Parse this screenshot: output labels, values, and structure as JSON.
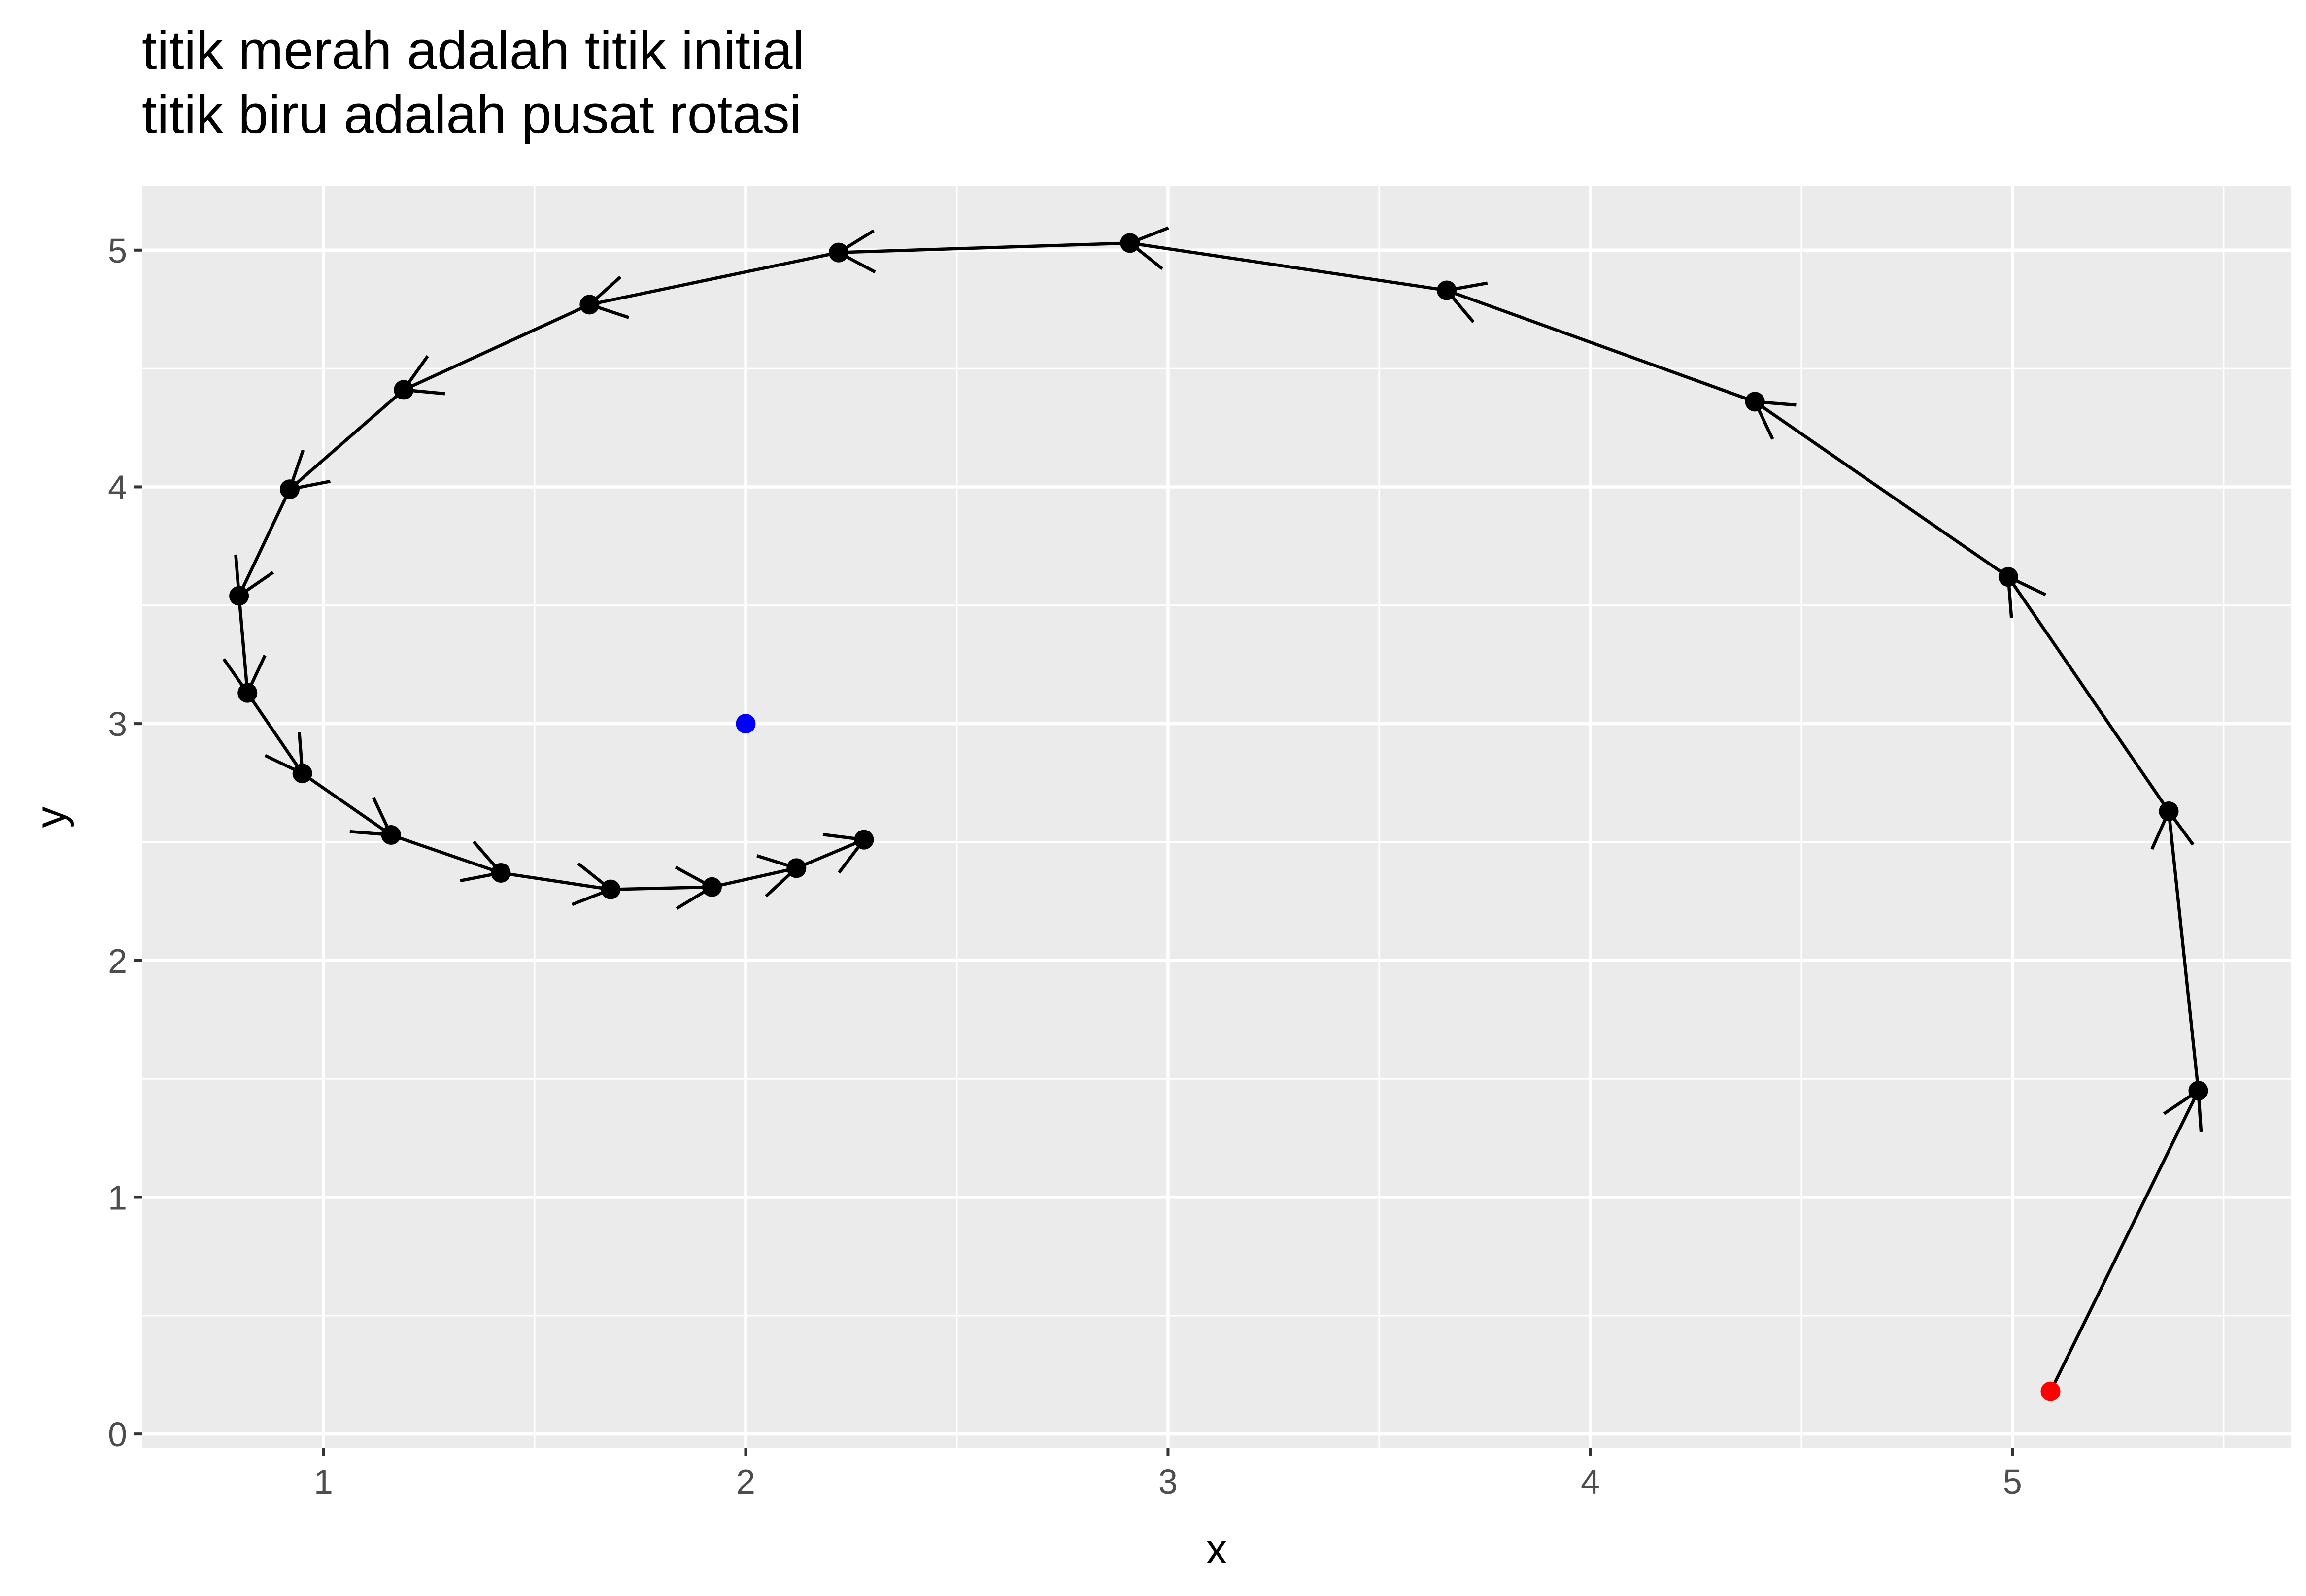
{
  "chart_data": {
    "type": "scatter",
    "title": "titik merah adalah titik initial\ntitik biru adalah pusat rotasi",
    "xlabel": "x",
    "ylabel": "y",
    "xlim": [
      0.57,
      5.66
    ],
    "ylim": [
      -0.06,
      5.27
    ],
    "x_ticks": [
      1,
      2,
      3,
      4,
      5
    ],
    "y_ticks": [
      0,
      1,
      2,
      3,
      4,
      5
    ],
    "grid": true,
    "legend": "none",
    "colors": {
      "panel": "#ebebeb",
      "grid": "#ffffff",
      "path": "#000000",
      "initial_point": "#ff0000",
      "center_point": "#0000ff",
      "tick_text": "#4d4d4d"
    },
    "initial_point": {
      "x": 5.09,
      "y": 0.18
    },
    "center_point": {
      "x": 2.0,
      "y": 3.0
    },
    "path": [
      {
        "x": 5.09,
        "y": 0.18
      },
      {
        "x": 5.44,
        "y": 1.45
      },
      {
        "x": 5.37,
        "y": 2.63
      },
      {
        "x": 4.99,
        "y": 3.62
      },
      {
        "x": 4.39,
        "y": 4.36
      },
      {
        "x": 3.66,
        "y": 4.83
      },
      {
        "x": 2.91,
        "y": 5.03
      },
      {
        "x": 2.22,
        "y": 4.99
      },
      {
        "x": 1.63,
        "y": 4.77
      },
      {
        "x": 1.19,
        "y": 4.41
      },
      {
        "x": 0.92,
        "y": 3.99
      },
      {
        "x": 0.8,
        "y": 3.54
      },
      {
        "x": 0.82,
        "y": 3.13
      },
      {
        "x": 0.95,
        "y": 2.79
      },
      {
        "x": 1.16,
        "y": 2.53
      },
      {
        "x": 1.42,
        "y": 2.37
      },
      {
        "x": 1.68,
        "y": 2.3
      },
      {
        "x": 1.92,
        "y": 2.31
      },
      {
        "x": 2.12,
        "y": 2.39
      },
      {
        "x": 2.28,
        "y": 2.51
      }
    ]
  }
}
